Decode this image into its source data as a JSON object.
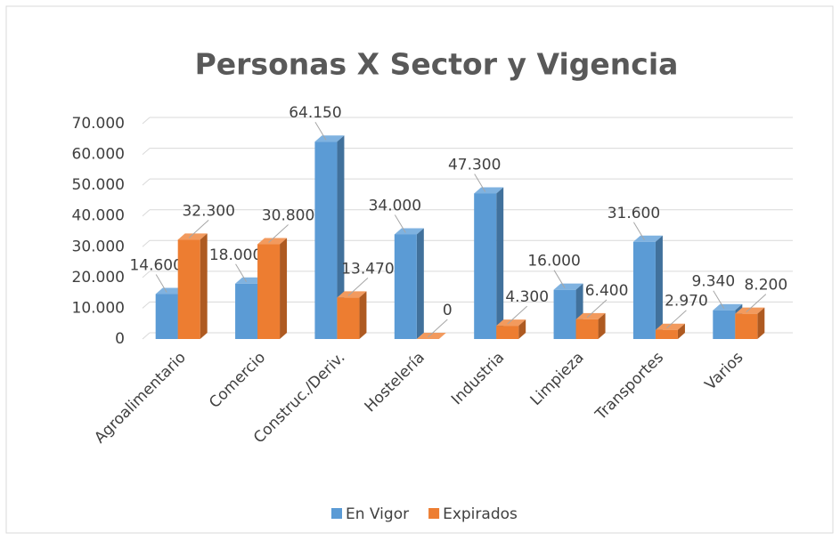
{
  "chart_data": {
    "type": "bar3d",
    "title": "Personas X Sector y Vigencia",
    "categories": [
      "Agroalimentario",
      "Comercio",
      "Construc./Deriv.",
      "Hostelería",
      "Industria",
      "Limpieza",
      "Transportes",
      "Varios"
    ],
    "series": [
      {
        "name": "En Vigor",
        "color": "#5b9bd5",
        "side": "#41719c",
        "top": "#7fb2e0",
        "values": [
          14600,
          18000,
          64150,
          34000,
          47300,
          16000,
          31600,
          9340
        ],
        "value_labels": [
          "14.600",
          "18.000",
          "64.150",
          "34.000",
          "47.300",
          "16.000",
          "31.600",
          "9.340"
        ]
      },
      {
        "name": "Expirados",
        "color": "#ed7d31",
        "side": "#ae5a21",
        "top": "#f29a5e",
        "values": [
          32300,
          30800,
          13470,
          0,
          4300,
          6400,
          2970,
          8200
        ],
        "value_labels": [
          "32.300",
          "30.800",
          "13.470",
          "0",
          "4.300",
          "6.400",
          "2.970",
          "8.200"
        ]
      }
    ],
    "ylim": [
      0,
      70000
    ],
    "yticks": [
      0,
      {
        "value": 10000,
        "label": "10.000"
      },
      {
        "value": 20000,
        "label": "20.000"
      },
      {
        "value": 30000,
        "label": "30.000"
      },
      {
        "value": 40000,
        "label": "40.000"
      },
      {
        "value": 50000,
        "label": "50.000"
      },
      {
        "value": 60000,
        "label": "60.000"
      },
      {
        "value": 70000,
        "label": "70.000"
      }
    ],
    "grid": true,
    "legend": "bottom"
  }
}
